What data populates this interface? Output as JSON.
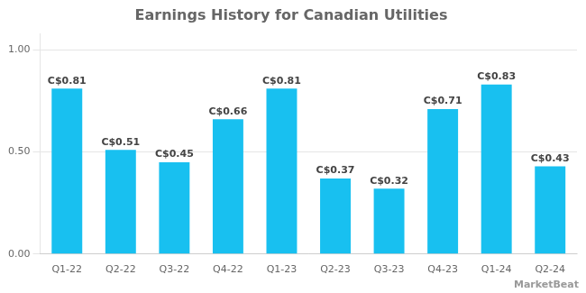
{
  "chart_data": {
    "type": "bar",
    "title": "Earnings History for Canadian Utilities",
    "categories": [
      "Q1-22",
      "Q2-22",
      "Q3-22",
      "Q4-22",
      "Q1-23",
      "Q2-23",
      "Q3-23",
      "Q4-23",
      "Q1-24",
      "Q2-24"
    ],
    "values": [
      0.81,
      0.51,
      0.45,
      0.66,
      0.81,
      0.37,
      0.32,
      0.71,
      0.83,
      0.43
    ],
    "value_labels": [
      "C$0.81",
      "C$0.51",
      "C$0.45",
      "C$0.66",
      "C$0.81",
      "C$0.37",
      "C$0.32",
      "C$0.71",
      "C$0.83",
      "C$0.43"
    ],
    "data_labels": true,
    "color": "#18C0F0",
    "ylim": [
      0,
      1.08
    ],
    "yticks": [
      {
        "value": 0,
        "label": "0.00"
      },
      {
        "value": 0.5,
        "label": "0.50"
      },
      {
        "value": 1,
        "label": "1.00"
      }
    ],
    "grid": true,
    "annotations": [
      "MarketBeat"
    ]
  }
}
